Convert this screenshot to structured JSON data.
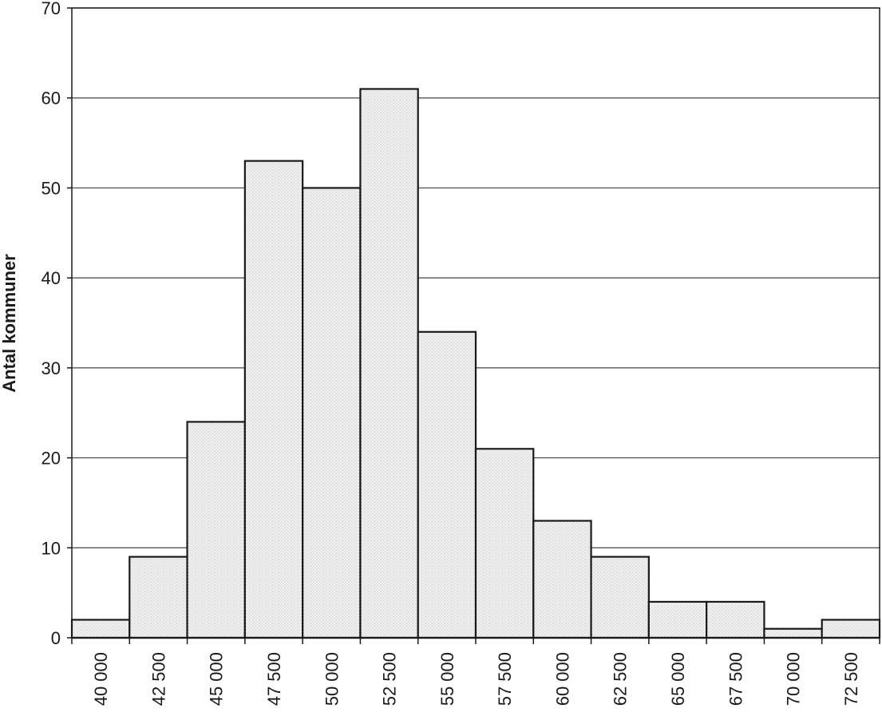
{
  "chart_data": {
    "type": "bar",
    "title": "",
    "xlabel": "",
    "ylabel": "Antal kommuner",
    "categories": [
      "40 000",
      "42 500",
      "45 000",
      "47 500",
      "50 000",
      "52 500",
      "55 000",
      "57 500",
      "60 000",
      "62 500",
      "65 000",
      "67 500",
      "70 000",
      "72 500"
    ],
    "values": [
      2,
      9,
      24,
      53,
      50,
      61,
      34,
      21,
      13,
      9,
      4,
      4,
      1,
      2
    ],
    "ylim": [
      0,
      70
    ],
    "yticks": [
      "0",
      "10",
      "20",
      "30",
      "40",
      "50",
      "60",
      "70"
    ],
    "grid": true,
    "legend": "none",
    "colors": {
      "bar_fill": "#ececec",
      "bar_stroke": "#1a1a1a",
      "grid": "#444444",
      "axis": "#1a1a1a",
      "background": "#ffffff"
    }
  }
}
